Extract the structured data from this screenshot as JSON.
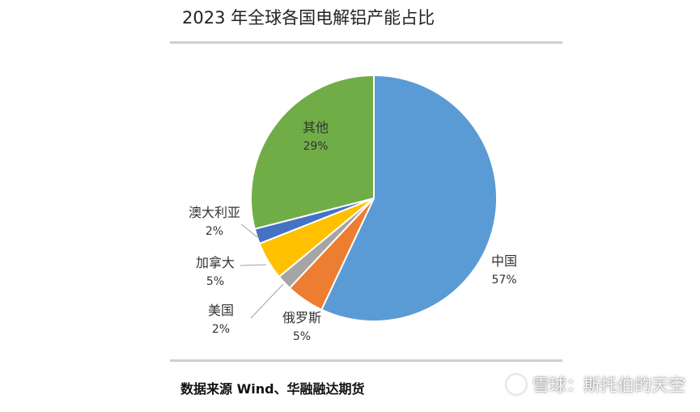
{
  "title": "2023 年全球各国电解铝产能占比",
  "source": "数据来源 Wind、华融融达期货",
  "watermark": "雪球：斯托伯的天空",
  "chart_data": {
    "type": "pie",
    "title": "2023 年全球各国电解铝产能占比",
    "slices": [
      {
        "name": "中国",
        "value": 57,
        "label": "57%",
        "color": "#5b9bd5"
      },
      {
        "name": "俄罗斯",
        "value": 5,
        "label": "5%",
        "color": "#ed7d31"
      },
      {
        "name": "美国",
        "value": 2,
        "label": "2%",
        "color": "#a5a5a5"
      },
      {
        "name": "加拿大",
        "value": 5,
        "label": "5%",
        "color": "#ffc000"
      },
      {
        "name": "澳大利亚",
        "value": 2,
        "label": "2%",
        "color": "#4472c4"
      },
      {
        "name": "其他",
        "value": 29,
        "label": "29%",
        "color": "#70ad47"
      }
    ]
  }
}
